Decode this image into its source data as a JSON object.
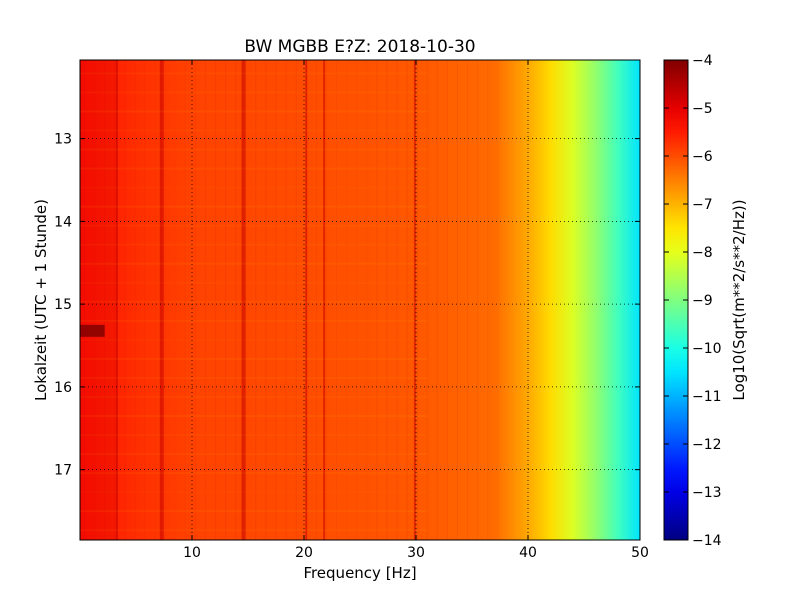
{
  "chart_data": {
    "type": "heatmap",
    "title": "BW MGBB E?Z: 2018-10-30",
    "xlabel": "Frequency [Hz]",
    "ylabel": "Lokalzeit (UTC + 1 Stunde)",
    "xlim": [
      0,
      50
    ],
    "ylim": [
      12.05,
      17.85
    ],
    "y_inverted": true,
    "grid": true,
    "x_ticks": [
      10,
      20,
      30,
      40,
      50
    ],
    "x_tick_labels": [
      "10",
      "20",
      "30",
      "40",
      "50"
    ],
    "y_ticks": [
      13,
      14,
      15,
      16,
      17
    ],
    "y_tick_labels": [
      "13",
      "14",
      "15",
      "16",
      "17"
    ],
    "colormap": "jet",
    "colorbar": {
      "label": "Log10(Sqrt(m**2/s**2/Hz))",
      "min": -14,
      "max": -4,
      "ticks": [
        -4,
        -5,
        -6,
        -7,
        -8,
        -9,
        -10,
        -11,
        -12,
        -13,
        -14
      ],
      "tick_labels": [
        "−4",
        "−5",
        "−6",
        "−7",
        "−8",
        "−9",
        "−10",
        "−11",
        "−12",
        "−13",
        "−14"
      ]
    },
    "profile_freq_hz": [
      0,
      5,
      10,
      20,
      30,
      37,
      40,
      42,
      44,
      46,
      48,
      50
    ],
    "profile_value": [
      -5.4,
      -5.7,
      -5.9,
      -6.0,
      -6.1,
      -6.3,
      -6.9,
      -7.4,
      -8.1,
      -8.8,
      -9.6,
      -10.5
    ],
    "narrowband_lines_hz": [
      3.3,
      7.3,
      14.6,
      20.2,
      21.8,
      29.9
    ],
    "notes_on_visible_features": []
  }
}
